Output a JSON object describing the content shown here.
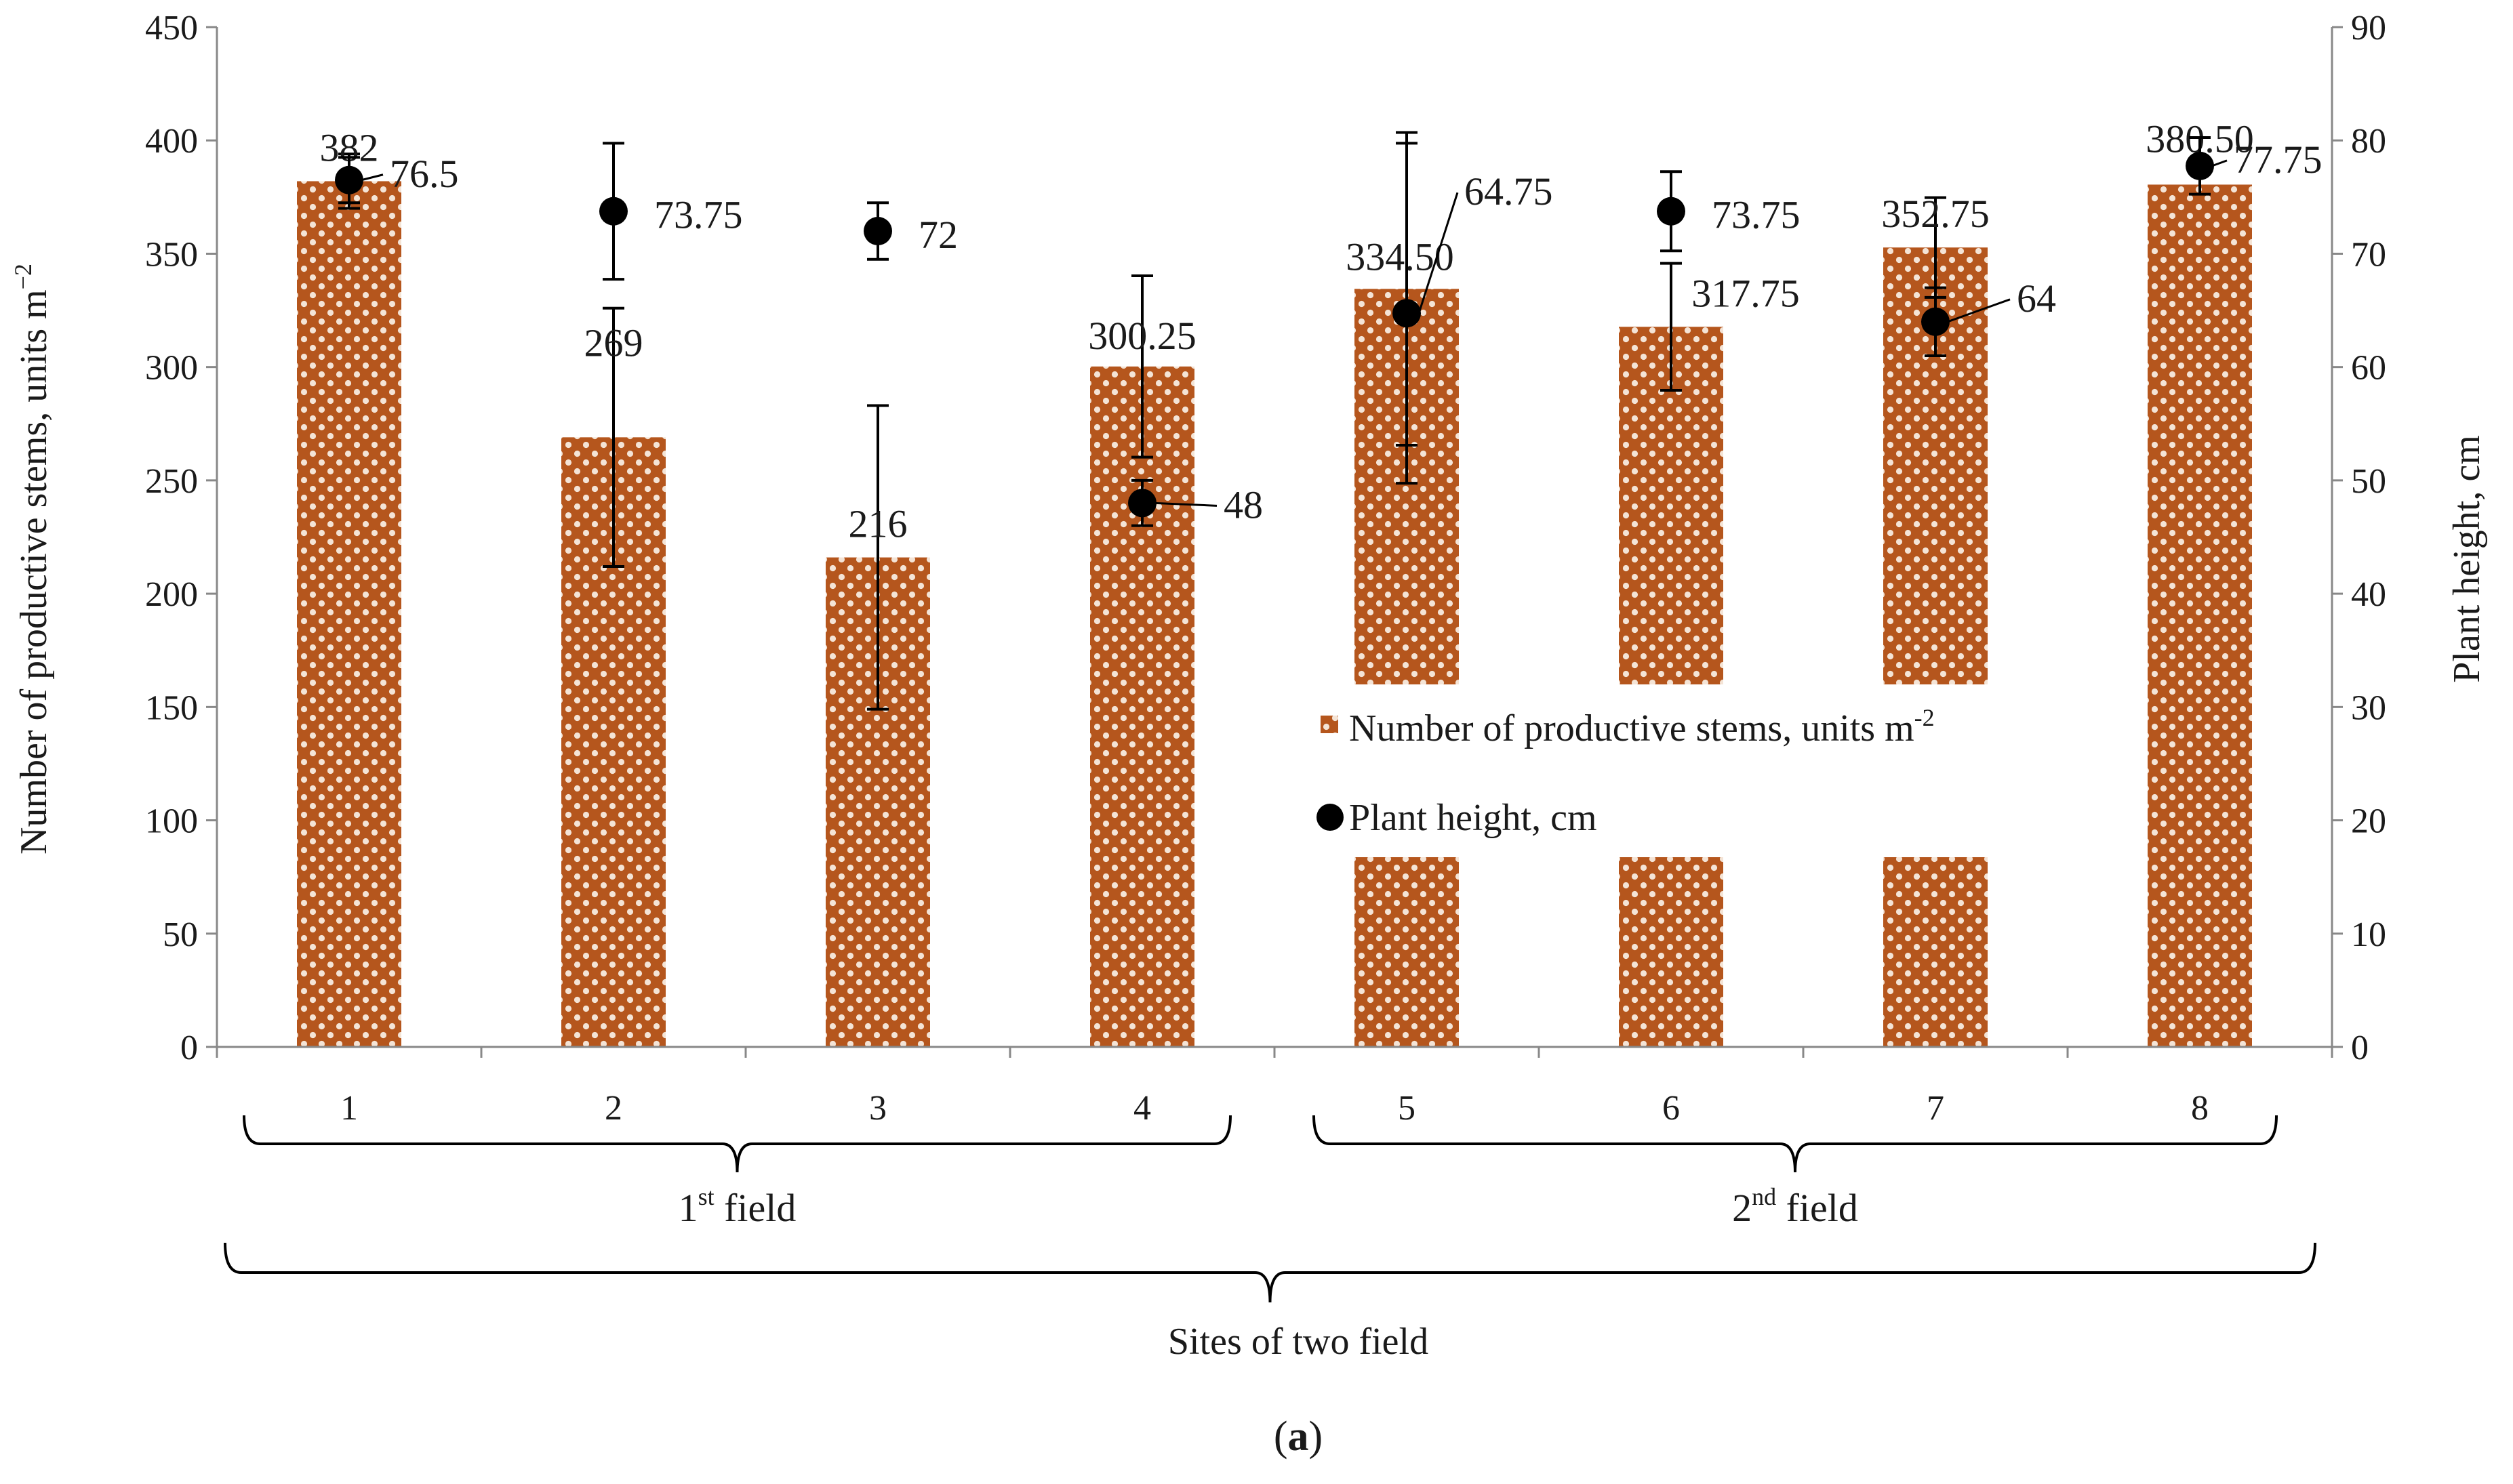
{
  "chart_data": {
    "type": "bar",
    "categories": [
      "1",
      "2",
      "3",
      "4",
      "5",
      "6",
      "7",
      "8"
    ],
    "series": [
      {
        "name": "Number of productive stems, units m",
        "name_sup": "-2",
        "axis": "left",
        "kind": "bar",
        "values": [
          382,
          269,
          216,
          300.25,
          334.5,
          317.75,
          352.75,
          380.5
        ],
        "labels": [
          "382",
          "269",
          "216",
          "300.25",
          "334.50",
          "317.75",
          "352.75",
          "380.50"
        ],
        "errors": [
          12,
          57,
          67,
          40,
          69,
          28,
          22,
          0
        ]
      },
      {
        "name": "Plant height, cm",
        "axis": "right",
        "kind": "scatter",
        "values": [
          76.5,
          73.75,
          72,
          48,
          64.75,
          73.75,
          64,
          77.75
        ],
        "labels": [
          "76.5",
          "73.75",
          "72",
          "48",
          "64.75",
          "73.75",
          "64",
          "77.75"
        ],
        "errors": [
          2,
          6,
          2.5,
          2,
          15,
          3.5,
          3,
          2.5
        ]
      }
    ],
    "y_left": {
      "label": "Number of productive stems, units m",
      "label_sup": "−2",
      "range": [
        0,
        450
      ],
      "ticks": [
        "0",
        "50",
        "100",
        "150",
        "200",
        "250",
        "300",
        "350",
        "400",
        "450"
      ]
    },
    "y_right": {
      "label": "Plant height, cm",
      "range": [
        0,
        90
      ],
      "ticks": [
        "0",
        "10",
        "20",
        "30",
        "40",
        "50",
        "60",
        "70",
        "80",
        "90"
      ]
    },
    "groups": [
      {
        "prefix": "1",
        "sup": "st",
        "suffix": " field",
        "from": 1,
        "to": 4
      },
      {
        "prefix": "2",
        "sup": "nd",
        "suffix": " field",
        "from": 5,
        "to": 8
      }
    ],
    "xlabel": "Sites of two field",
    "legend_position": "center-right",
    "grid": false,
    "caption": {
      "open": "(",
      "letter": "a",
      "close": ")"
    },
    "colors": {
      "bar": "#b5561d",
      "bar_dots": "#f4e4d6",
      "marker": "#000000",
      "axis": "#888888"
    }
  }
}
